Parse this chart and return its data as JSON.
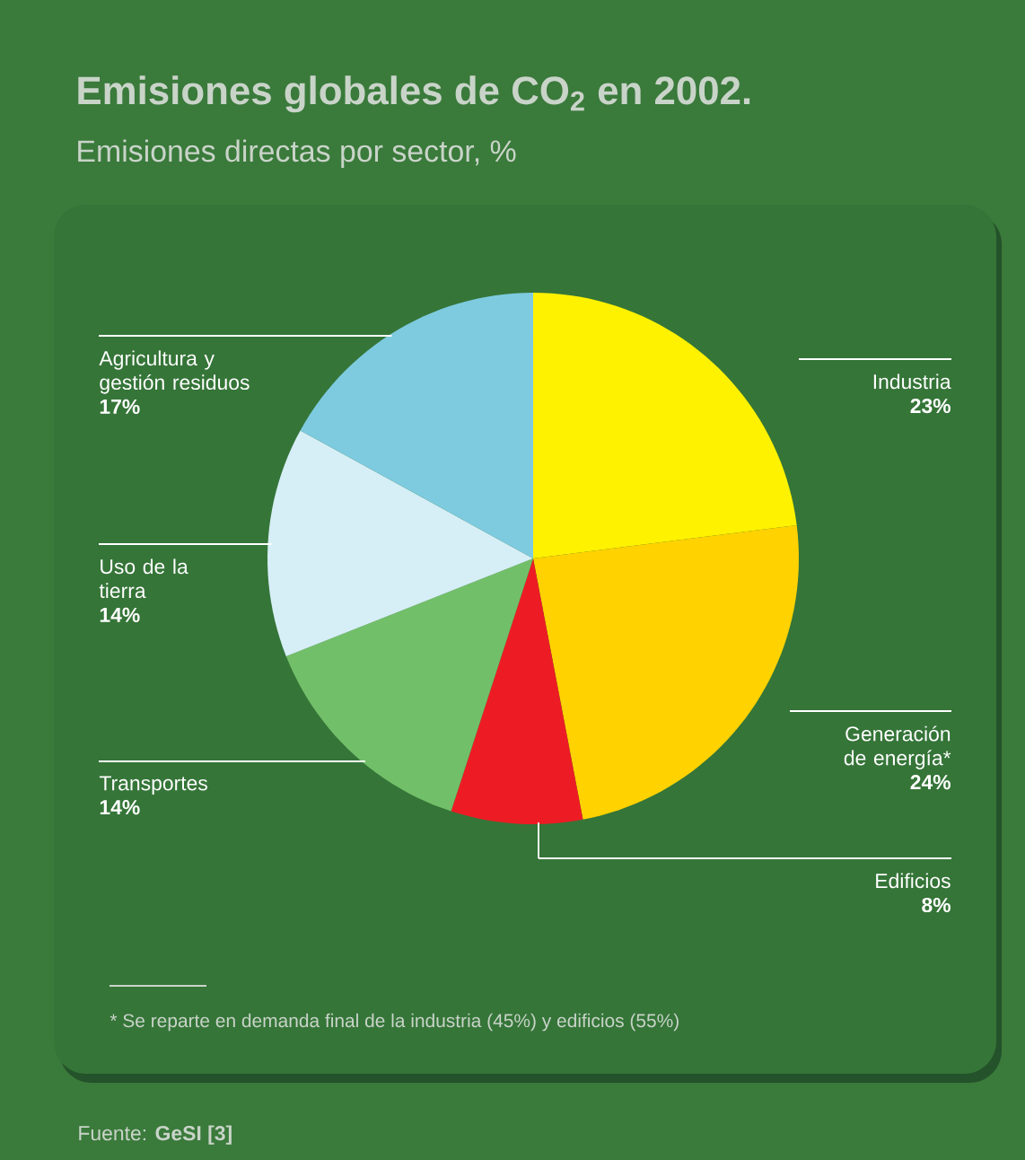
{
  "chart_data": {
    "type": "pie",
    "title": "Emisiones globales de CO$_{2}$ en 2002.",
    "subtitle": "Emisiones directas por sector, %",
    "categories": [
      "Industria",
      "Generación de energía*",
      "Edificios",
      "Transportes",
      "Uso de la tierra",
      "Agricultura y gestión residuos"
    ],
    "values": [
      23,
      24,
      8,
      14,
      14,
      17
    ],
    "value_labels": [
      "23%",
      "24%",
      "8%",
      "14%",
      "14%",
      "17%"
    ],
    "colors": [
      "#fff200",
      "#ffd200",
      "#ed1c24",
      "#72bf69",
      "#d6eef6",
      "#7ecbe0"
    ],
    "annotations": [
      "* Se reparte en demanda final de la industria (45%) y edificios (55%)",
      "Fuente: **GeSI [3]**"
    ]
  }
}
